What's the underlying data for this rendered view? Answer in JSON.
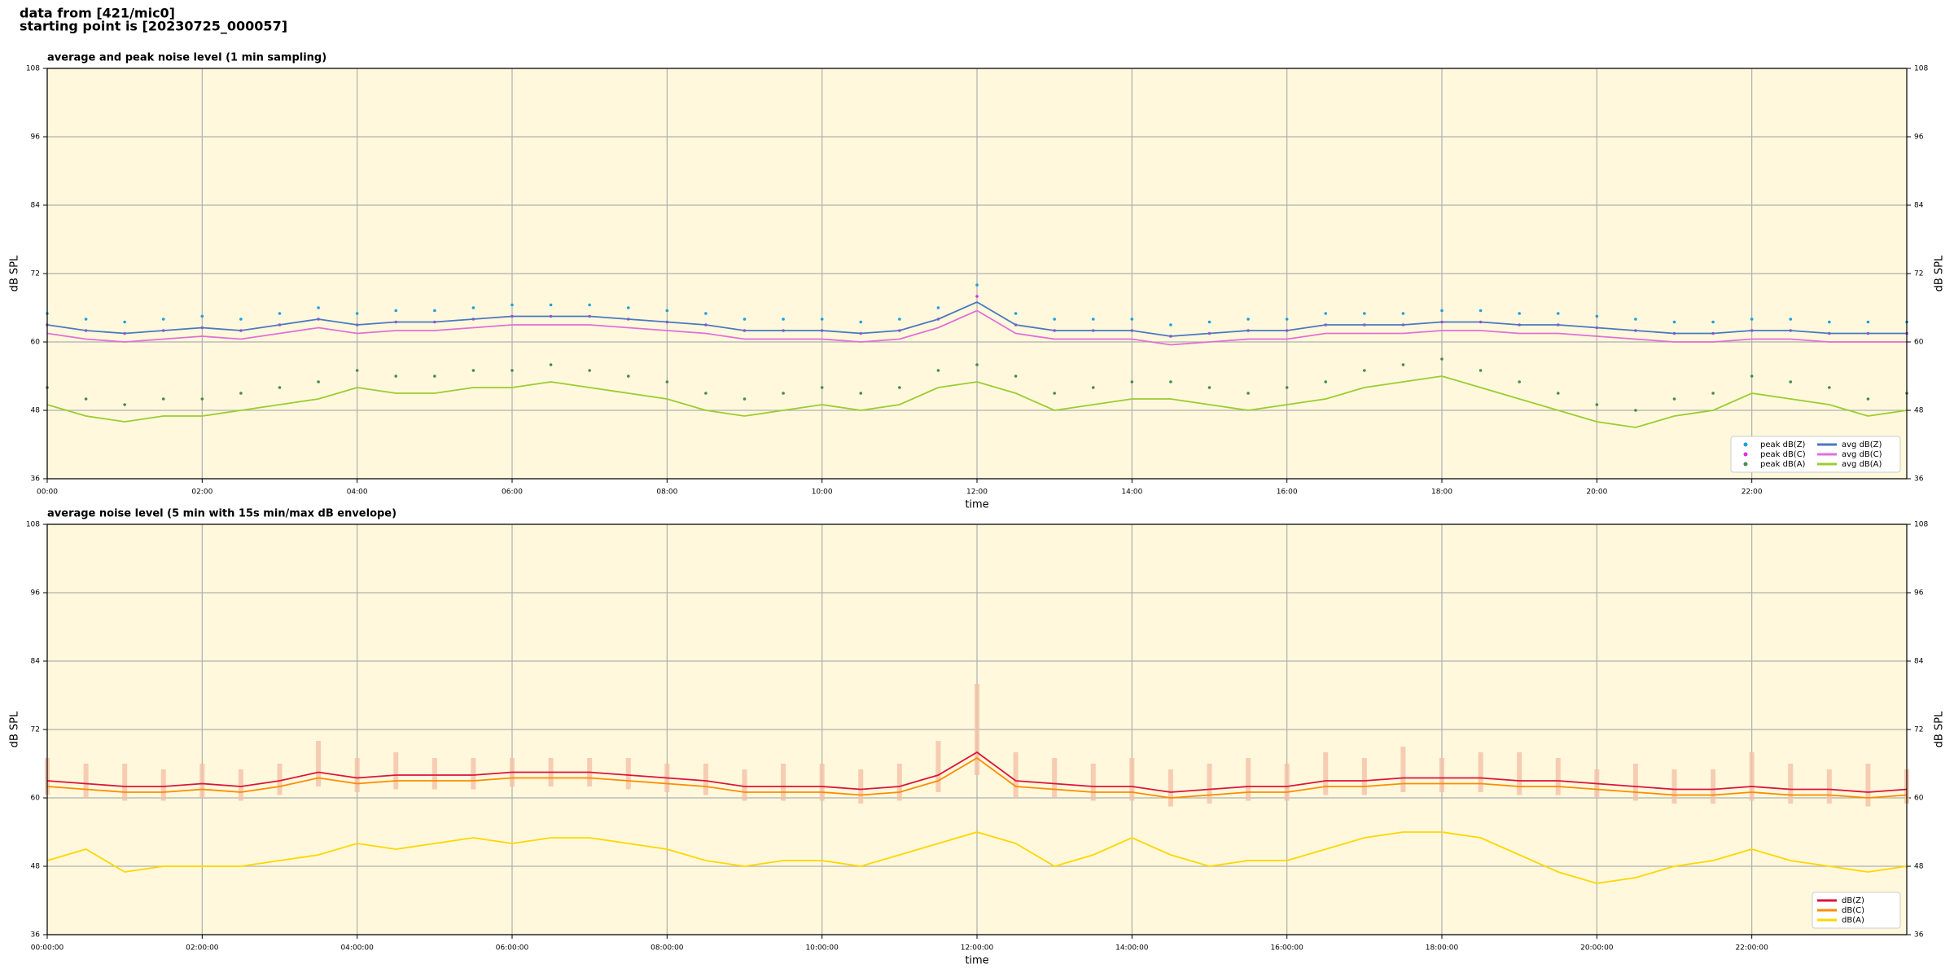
{
  "header": {
    "line1": "data from [421/mic0]",
    "line2": "starting point is [20230725_000057]"
  },
  "chart_data": [
    {
      "type": "line",
      "title": "average and peak noise level (1 min sampling)",
      "xlabel": "time",
      "ylabel": "dB SPL",
      "xlim": [
        0,
        24
      ],
      "ylim": [
        36,
        108
      ],
      "yticks": [
        36,
        48,
        60,
        72,
        84,
        96,
        108
      ],
      "xticks": [
        {
          "value": 0,
          "label": "00:00"
        },
        {
          "value": 2,
          "label": "02:00"
        },
        {
          "value": 4,
          "label": "04:00"
        },
        {
          "value": 6,
          "label": "06:00"
        },
        {
          "value": 8,
          "label": "08:00"
        },
        {
          "value": 10,
          "label": "10:00"
        },
        {
          "value": 12,
          "label": "12:00"
        },
        {
          "value": 14,
          "label": "14:00"
        },
        {
          "value": 16,
          "label": "16:00"
        },
        {
          "value": 18,
          "label": "18:00"
        },
        {
          "value": 20,
          "label": "20:00"
        },
        {
          "value": 22,
          "label": "22:00"
        }
      ],
      "grid": true,
      "legend": "lower right",
      "background": "#fff8dc",
      "x": [
        0,
        0.5,
        1,
        1.5,
        2,
        2.5,
        3,
        3.5,
        4,
        4.5,
        5,
        5.5,
        6,
        6.5,
        7,
        7.5,
        8,
        8.5,
        9,
        9.5,
        10,
        10.5,
        11,
        11.5,
        12,
        12.5,
        13,
        13.5,
        14,
        14.5,
        15,
        15.5,
        16,
        16.5,
        17,
        17.5,
        18,
        18.5,
        19,
        19.5,
        20,
        20.5,
        21,
        21.5,
        22,
        22.5,
        23,
        23.5,
        24
      ],
      "series": [
        {
          "name": "peak dB(Z)",
          "style": "points",
          "color": "#1f9fdf",
          "values": [
            65,
            64,
            63.5,
            64,
            64.5,
            64,
            65,
            66,
            65,
            65.5,
            65.5,
            66,
            66.5,
            66.5,
            66.5,
            66,
            65.5,
            65,
            64,
            64,
            64,
            63.5,
            64,
            66,
            70,
            65,
            64,
            64,
            64,
            63,
            63.5,
            64,
            64,
            65,
            65,
            65,
            65.5,
            65.5,
            65,
            65,
            64.5,
            64,
            63.5,
            63.5,
            64,
            64,
            63.5,
            63.5,
            63.5
          ]
        },
        {
          "name": "peak dB(C)",
          "style": "points",
          "color": "#e030e0",
          "values": [
            63,
            62,
            61.5,
            62,
            62.5,
            62,
            63,
            64,
            63,
            63.5,
            63.5,
            64,
            64.5,
            64.5,
            64.5,
            64,
            63.5,
            63,
            62,
            62,
            62,
            61.5,
            62,
            64,
            68,
            63,
            62,
            62,
            62,
            61,
            61.5,
            62,
            62,
            63,
            63,
            63,
            63.5,
            63.5,
            63,
            63,
            62.5,
            62,
            61.5,
            61.5,
            62,
            62,
            61.5,
            61.5,
            61.5
          ]
        },
        {
          "name": "peak dB(A)",
          "style": "points",
          "color": "#4a8a4a",
          "values": [
            52,
            50,
            49,
            50,
            50,
            51,
            52,
            53,
            55,
            54,
            54,
            55,
            55,
            56,
            55,
            54,
            53,
            51,
            50,
            51,
            52,
            51,
            52,
            55,
            56,
            54,
            51,
            52,
            53,
            53,
            52,
            51,
            52,
            53,
            55,
            56,
            57,
            55,
            53,
            51,
            49,
            48,
            50,
            51,
            54,
            53,
            52,
            50,
            51
          ]
        },
        {
          "name": "avg dB(Z)",
          "style": "line",
          "color": "#4a78c0",
          "values": [
            63,
            62,
            61.5,
            62,
            62.5,
            62,
            63,
            64,
            63,
            63.5,
            63.5,
            64,
            64.5,
            64.5,
            64.5,
            64,
            63.5,
            63,
            62,
            62,
            62,
            61.5,
            62,
            64,
            67,
            63,
            62,
            62,
            62,
            61,
            61.5,
            62,
            62,
            63,
            63,
            63,
            63.5,
            63.5,
            63,
            63,
            62.5,
            62,
            61.5,
            61.5,
            62,
            62,
            61.5,
            61.5,
            61.5
          ]
        },
        {
          "name": "avg dB(C)",
          "style": "line",
          "color": "#e070d8",
          "values": [
            61.5,
            60.5,
            60,
            60.5,
            61,
            60.5,
            61.5,
            62.5,
            61.5,
            62,
            62,
            62.5,
            63,
            63,
            63,
            62.5,
            62,
            61.5,
            60.5,
            60.5,
            60.5,
            60,
            60.5,
            62.5,
            65.5,
            61.5,
            60.5,
            60.5,
            60.5,
            59.5,
            60,
            60.5,
            60.5,
            61.5,
            61.5,
            61.5,
            62,
            62,
            61.5,
            61.5,
            61,
            60.5,
            60,
            60,
            60.5,
            60.5,
            60,
            60,
            60
          ]
        },
        {
          "name": "avg dB(A)",
          "style": "line",
          "color": "#9acd32",
          "values": [
            49,
            47,
            46,
            47,
            47,
            48,
            49,
            50,
            52,
            51,
            51,
            52,
            52,
            53,
            52,
            51,
            50,
            48,
            47,
            48,
            49,
            48,
            49,
            52,
            53,
            51,
            48,
            49,
            50,
            50,
            49,
            48,
            49,
            50,
            52,
            53,
            54,
            52,
            50,
            48,
            46,
            45,
            47,
            48,
            51,
            50,
            49,
            47,
            48
          ]
        }
      ]
    },
    {
      "type": "line",
      "title": "average noise level (5 min with 15s min/max dB envelope)",
      "xlabel": "time",
      "ylabel": "dB SPL",
      "xlim": [
        0,
        24
      ],
      "ylim": [
        36,
        108
      ],
      "yticks": [
        36,
        48,
        60,
        72,
        84,
        96,
        108
      ],
      "xticks": [
        {
          "value": 0,
          "label": "00:00:00"
        },
        {
          "value": 2,
          "label": "02:00:00"
        },
        {
          "value": 4,
          "label": "04:00:00"
        },
        {
          "value": 6,
          "label": "06:00:00"
        },
        {
          "value": 8,
          "label": "08:00:00"
        },
        {
          "value": 10,
          "label": "10:00:00"
        },
        {
          "value": 12,
          "label": "12:00:00"
        },
        {
          "value": 14,
          "label": "14:00:00"
        },
        {
          "value": 16,
          "label": "16:00:00"
        },
        {
          "value": 18,
          "label": "18:00:00"
        },
        {
          "value": 20,
          "label": "20:00:00"
        },
        {
          "value": 22,
          "label": "22:00:00"
        }
      ],
      "grid": true,
      "legend": "lower right",
      "background": "#fff8dc",
      "x": [
        0,
        0.5,
        1,
        1.5,
        2,
        2.5,
        3,
        3.5,
        4,
        4.5,
        5,
        5.5,
        6,
        6.5,
        7,
        7.5,
        8,
        8.5,
        9,
        9.5,
        10,
        10.5,
        11,
        11.5,
        12,
        12.5,
        13,
        13.5,
        14,
        14.5,
        15,
        15.5,
        16,
        16.5,
        17,
        17.5,
        18,
        18.5,
        19,
        19.5,
        20,
        20.5,
        21,
        21.5,
        22,
        22.5,
        23,
        23.5,
        24
      ],
      "envelope": {
        "color": "#f4c0a8",
        "high": [
          67,
          66,
          66,
          65,
          66,
          65,
          66,
          70,
          67,
          68,
          67,
          67,
          67,
          67,
          67,
          67,
          66,
          66,
          65,
          66,
          66,
          65,
          66,
          70,
          80,
          68,
          67,
          66,
          67,
          65,
          66,
          67,
          66,
          68,
          67,
          69,
          67,
          68,
          68,
          67,
          65,
          66,
          65,
          65,
          68,
          66,
          65,
          66,
          65
        ],
        "low": [
          60.5,
          60,
          59.5,
          59.5,
          60,
          59.5,
          60.5,
          62,
          61,
          61.5,
          61.5,
          61.5,
          62,
          62,
          62,
          61.5,
          61,
          60.5,
          59.5,
          59.5,
          59.5,
          59,
          59.5,
          61,
          64,
          60,
          60,
          59.5,
          59.5,
          58.5,
          59,
          59.5,
          59.5,
          60.5,
          60.5,
          61,
          61,
          61,
          60.5,
          60.5,
          60,
          59.5,
          59,
          59,
          59.5,
          59,
          59,
          58.5,
          59
        ]
      },
      "series": [
        {
          "name": "dB(Z)",
          "style": "line",
          "color": "#dc143c",
          "values": [
            63,
            62.5,
            62,
            62,
            62.5,
            62,
            63,
            64.5,
            63.5,
            64,
            64,
            64,
            64.5,
            64.5,
            64.5,
            64,
            63.5,
            63,
            62,
            62,
            62,
            61.5,
            62,
            64,
            68,
            63,
            62.5,
            62,
            62,
            61,
            61.5,
            62,
            62,
            63,
            63,
            63.5,
            63.5,
            63.5,
            63,
            63,
            62.5,
            62,
            61.5,
            61.5,
            62,
            61.5,
            61.5,
            61,
            61.5
          ]
        },
        {
          "name": "dB(C)",
          "style": "line",
          "color": "#ff8c00",
          "values": [
            62,
            61.5,
            61,
            61,
            61.5,
            61,
            62,
            63.5,
            62.5,
            63,
            63,
            63,
            63.5,
            63.5,
            63.5,
            63,
            62.5,
            62,
            61,
            61,
            61,
            60.5,
            61,
            63,
            67,
            62,
            61.5,
            61,
            61,
            60,
            60.5,
            61,
            61,
            62,
            62,
            62.5,
            62.5,
            62.5,
            62,
            62,
            61.5,
            61,
            60.5,
            60.5,
            61,
            60.5,
            60.5,
            60,
            60.5
          ]
        },
        {
          "name": "dB(A)",
          "style": "line",
          "color": "#ffd700",
          "values": [
            49,
            51,
            47,
            48,
            48,
            48,
            49,
            50,
            52,
            51,
            52,
            53,
            52,
            53,
            53,
            52,
            51,
            49,
            48,
            49,
            49,
            48,
            50,
            52,
            54,
            52,
            48,
            50,
            53,
            50,
            48,
            49,
            49,
            51,
            53,
            54,
            54,
            53,
            50,
            47,
            45,
            46,
            48,
            49,
            51,
            49,
            48,
            47,
            48
          ]
        }
      ]
    }
  ]
}
